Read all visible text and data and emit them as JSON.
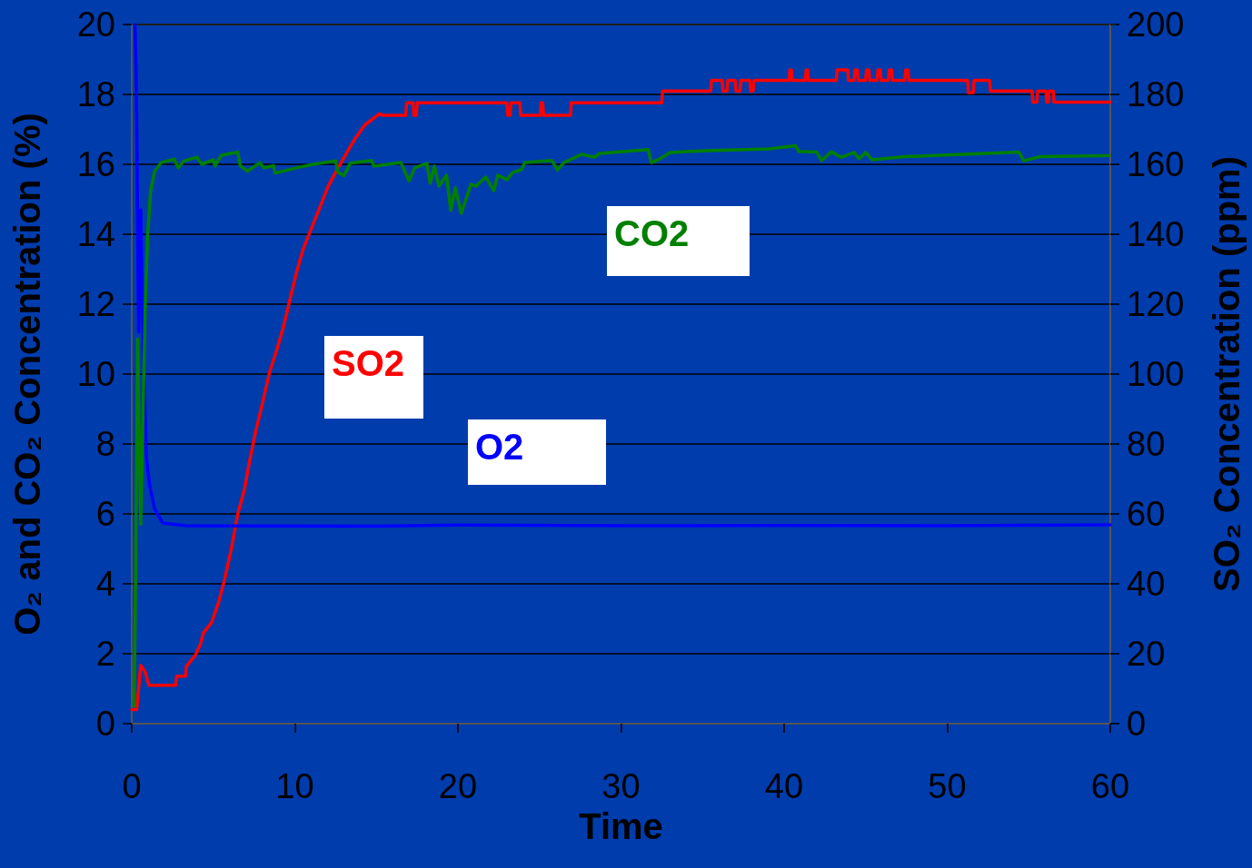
{
  "chart_data": {
    "type": "line",
    "xlabel": "Time",
    "ylabel": "O₂ and CO₂ Concentration (%)",
    "y2label": "SO₂ Concentration (ppm)",
    "xlim": [
      0,
      60
    ],
    "xticks": [
      0,
      10,
      20,
      30,
      40,
      50,
      60
    ],
    "ylim": [
      0,
      20
    ],
    "yticks": [
      0,
      2,
      4,
      6,
      8,
      10,
      12,
      14,
      16,
      18,
      20
    ],
    "y2lim": [
      0,
      200
    ],
    "y2ticks": [
      0,
      20,
      40,
      60,
      80,
      100,
      120,
      140,
      160,
      180,
      200
    ],
    "grid": "y",
    "marker": "none",
    "line_style": "solid",
    "series": [
      {
        "name": "SO2",
        "color": "#ff0000",
        "axis": "y2",
        "x": [
          0,
          0.3,
          0.55,
          0.83,
          1.05,
          2.7,
          2.75,
          3.3,
          3.35,
          3.9,
          4.2,
          4.4,
          4.9,
          5.3,
          5.7,
          6.1,
          6.5,
          6.9,
          7.2,
          7.6,
          8.0,
          8.45,
          8.9,
          9.3,
          9.7,
          10.1,
          10.5,
          11.1,
          11.5,
          12.05,
          12.5,
          13.2,
          13.7,
          14.3,
          15.2,
          15.4,
          16.8,
          16.85,
          17.25,
          17.3,
          17.45,
          17.5,
          23.0,
          23.05,
          23.2,
          23.25,
          23.8,
          23.85,
          24.1,
          24.15,
          25.05,
          25.1,
          25.2,
          25.25,
          26.9,
          26.95,
          32.5,
          32.55,
          35.5,
          35.55,
          36.2,
          36.25,
          36.5,
          36.55,
          37.0,
          37.05,
          37.3,
          37.35,
          37.9,
          37.95,
          38.1,
          38.15,
          40.3,
          40.35,
          40.45,
          40.5,
          41.3,
          41.35,
          41.45,
          41.5,
          43.2,
          43.25,
          43.9,
          43.95,
          44.3,
          44.35,
          44.5,
          44.55,
          45.0,
          45.05,
          45.2,
          45.25,
          45.7,
          45.75,
          45.9,
          45.95,
          46.4,
          46.45,
          46.6,
          46.65,
          47.4,
          47.45,
          47.6,
          47.65,
          51.25,
          51.3,
          51.6,
          51.65,
          52.6,
          52.65,
          55.2,
          55.25,
          55.5,
          55.55,
          56.05,
          56.1,
          56.2,
          56.25,
          56.5,
          56.55,
          60
        ],
        "values": [
          4,
          4,
          16.7,
          14.7,
          11,
          11,
          13.6,
          13.6,
          16.4,
          19.6,
          22.6,
          26,
          29,
          34.3,
          41.4,
          49.9,
          60,
          66.8,
          74.5,
          83.6,
          91.4,
          100.5,
          107,
          113.5,
          121.3,
          129,
          135.6,
          142.7,
          147.3,
          153.8,
          157.7,
          163.5,
          167.4,
          171.3,
          174.5,
          174,
          174,
          177.6,
          177.6,
          174,
          174,
          177.6,
          177.6,
          174,
          174,
          177.6,
          177.6,
          174,
          174,
          174,
          174,
          177.6,
          177.6,
          174,
          174,
          177.6,
          177.6,
          181,
          181,
          184,
          184,
          181,
          181,
          184,
          184,
          181,
          181,
          184,
          184,
          181,
          181,
          184,
          184,
          187,
          187,
          184,
          184,
          187,
          187,
          184,
          184,
          187,
          187,
          184,
          184,
          187,
          187,
          184,
          184,
          187,
          187,
          184,
          184,
          187,
          187,
          184,
          184,
          187,
          187,
          184,
          184,
          187,
          187,
          184,
          184,
          180.5,
          180.5,
          184,
          184,
          181,
          181,
          177.8,
          177.8,
          181,
          181,
          177.8,
          177.8,
          181,
          181,
          177.8,
          177.8
        ]
      },
      {
        "name": "O2",
        "color": "#0000ff",
        "x": [
          0.2,
          0.28,
          0.42,
          0.55,
          0.7,
          0.9,
          1.1,
          1.4,
          1.9,
          3.3,
          15,
          20,
          30,
          40,
          50,
          60
        ],
        "values": [
          20,
          18.4,
          11.2,
          14.7,
          11,
          7.6,
          6.8,
          6.15,
          5.74,
          5.66,
          5.65,
          5.68,
          5.66,
          5.67,
          5.66,
          5.69
        ]
      },
      {
        "name": "CO2",
        "color": "#008000",
        "x": [
          0.14,
          0.22,
          0.36,
          0.55,
          0.83,
          0.97,
          1.16,
          1.4,
          1.8,
          2.6,
          2.85,
          3.2,
          4.0,
          4.3,
          5.0,
          5.1,
          5.5,
          6.5,
          6.65,
          7.1,
          7.85,
          8.1,
          8.7,
          8.8,
          10.1,
          11.1,
          12.5,
          12.65,
          13.0,
          13.4,
          14.7,
          14.85,
          16.5,
          17.0,
          17.35,
          18.1,
          18.3,
          18.56,
          18.84,
          19.3,
          19.56,
          19.84,
          20.2,
          20.8,
          21.1,
          21.7,
          22.2,
          22.44,
          23.0,
          23.36,
          23.9,
          24.1,
          25.76,
          26.1,
          26.5,
          27.6,
          28.35,
          28.7,
          31.67,
          31.86,
          32.4,
          33.0,
          35.2,
          39.06,
          40.7,
          40.9,
          42.0,
          42.3,
          42.9,
          43.5,
          44.3,
          44.6,
          45.0,
          45.4,
          47.4,
          54.4,
          54.7,
          55.7,
          59.9
        ],
        "values": [
          0.5,
          3.3,
          11.0,
          5.7,
          12.0,
          13.95,
          15.25,
          15.8,
          16.05,
          16.15,
          15.9,
          16.1,
          16.2,
          16.0,
          16.13,
          15.95,
          16.26,
          16.35,
          15.96,
          15.8,
          16.05,
          15.9,
          15.96,
          15.75,
          15.9,
          16.0,
          16.1,
          15.77,
          15.68,
          16.03,
          16.11,
          15.95,
          16.05,
          15.53,
          15.9,
          16.03,
          15.46,
          15.95,
          15.38,
          15.69,
          14.68,
          15.33,
          14.6,
          15.43,
          15.37,
          15.64,
          15.25,
          15.69,
          15.56,
          15.77,
          15.85,
          16.05,
          16.11,
          15.84,
          16.05,
          16.29,
          16.2,
          16.31,
          16.42,
          16.05,
          16.16,
          16.34,
          16.39,
          16.44,
          16.53,
          16.37,
          16.35,
          16.11,
          16.36,
          16.2,
          16.34,
          16.16,
          16.34,
          16.13,
          16.22,
          16.35,
          16.1,
          16.22,
          16.25
        ]
      }
    ]
  }
}
